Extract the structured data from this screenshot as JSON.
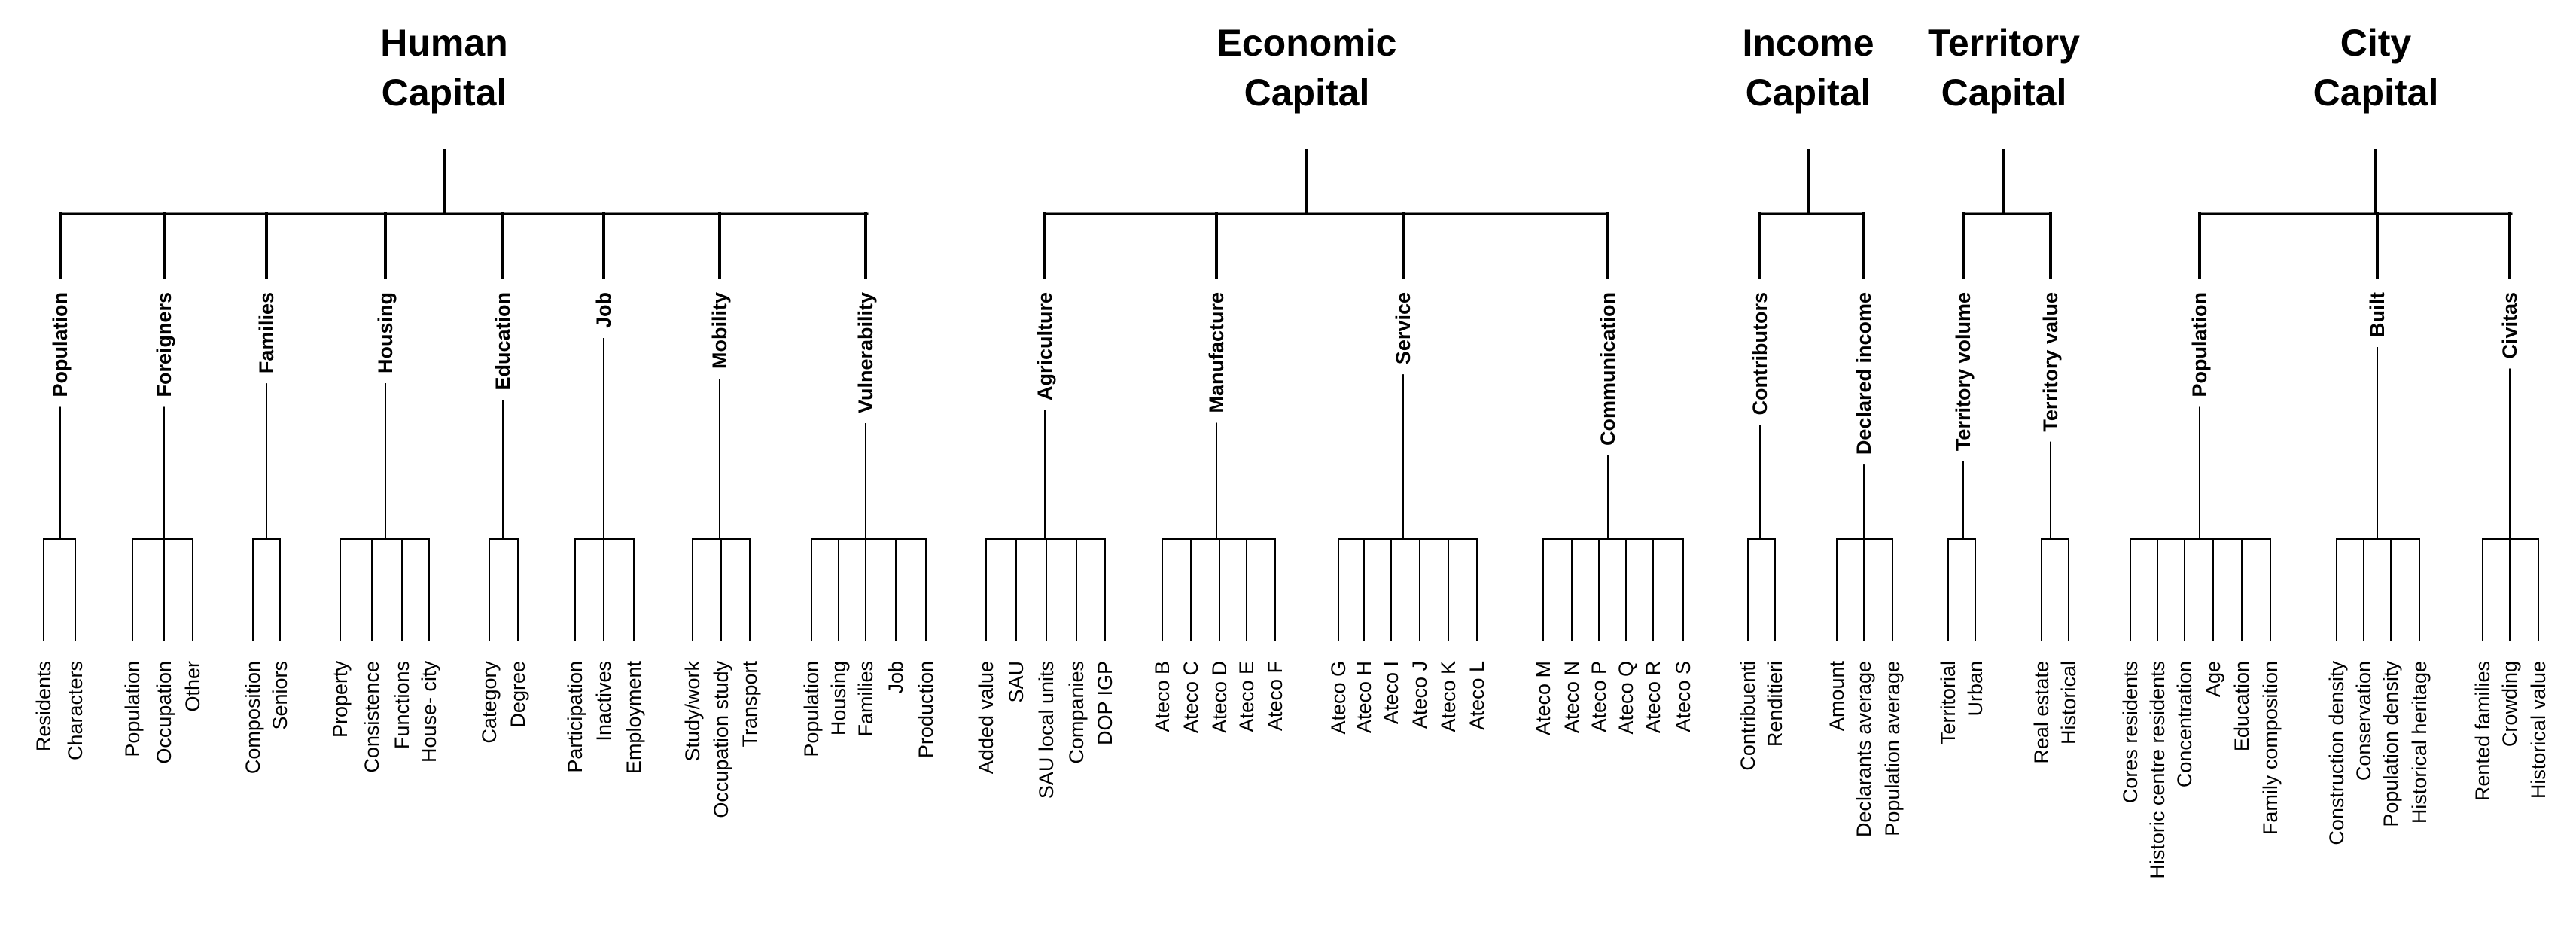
{
  "capitals": [
    {
      "id": "human",
      "title": [
        "Human",
        "Capital"
      ],
      "subs": [
        {
          "label": "Population",
          "leaves": [
            "Residents",
            "Characters"
          ]
        },
        {
          "label": "Foreigners",
          "leaves": [
            "Population",
            "Occupation",
            "Other"
          ]
        },
        {
          "label": "Families",
          "leaves": [
            "Composition",
            "Seniors"
          ]
        },
        {
          "label": "Housing",
          "leaves": [
            "Property",
            "Consistence",
            "Functions",
            "House- city"
          ]
        },
        {
          "label": "Education",
          "leaves": [
            "Category",
            "Degree"
          ]
        },
        {
          "label": "Job",
          "leaves": [
            "Participation",
            "Inactives",
            "Employment"
          ]
        },
        {
          "label": "Mobility",
          "leaves": [
            "Study/work",
            "Occupation study",
            "Transport"
          ]
        },
        {
          "label": "Vulnerability",
          "leaves": [
            "Population",
            "Housing",
            "Families",
            "Job",
            "Production"
          ]
        }
      ]
    },
    {
      "id": "economic",
      "title": [
        "Economic",
        "Capital"
      ],
      "subs": [
        {
          "label": "Agriculture",
          "leaves": [
            "Added value",
            "SAU",
            "SAU local units",
            "Companies",
            "DOP IGP"
          ]
        },
        {
          "label": "Manufacture",
          "leaves": [
            "Ateco B",
            "Ateco C",
            "Ateco D",
            "Ateco E",
            "Ateco F"
          ]
        },
        {
          "label": "Service",
          "leaves": [
            "Ateco G",
            "Ateco H",
            "Ateco I",
            "Ateco J",
            "Ateco K",
            "Ateco L"
          ]
        },
        {
          "label": "Communication",
          "leaves": [
            "Ateco M",
            "Ateco N",
            "Ateco P",
            "Ateco Q",
            "Ateco R",
            "Ateco S"
          ]
        }
      ]
    },
    {
      "id": "income",
      "title": [
        "Income",
        "Capital"
      ],
      "subs": [
        {
          "label": "Contributors",
          "leaves": [
            "Contribuenti",
            "Renditieri"
          ]
        },
        {
          "label": "Declared income",
          "leaves": [
            "Amount",
            "Declarants average",
            "Population average"
          ]
        }
      ]
    },
    {
      "id": "territory",
      "title": [
        "Territory",
        "Capital"
      ],
      "subs": [
        {
          "label": "Territory volume",
          "leaves": [
            "Territorial",
            "Urban"
          ]
        },
        {
          "label": "Territory value",
          "leaves": [
            "Real estate",
            "Historical"
          ]
        }
      ]
    },
    {
      "id": "city",
      "title": [
        "City",
        "Capital"
      ],
      "subs": [
        {
          "label": "Population",
          "leaves": [
            "Cores residents",
            "Historic centre residents",
            "Concentration",
            "Age",
            "Education",
            "Family composition"
          ]
        },
        {
          "label": "Built",
          "leaves": [
            "Construction density",
            "Conservation",
            "Population density",
            "Historical heritage"
          ]
        },
        {
          "label": "Civitas",
          "leaves": [
            "Rented families",
            "Crowding",
            "Historical value"
          ]
        }
      ]
    }
  ],
  "colors": {
    "line": "#000000",
    "text": "#000000",
    "background": "#ffffff"
  }
}
